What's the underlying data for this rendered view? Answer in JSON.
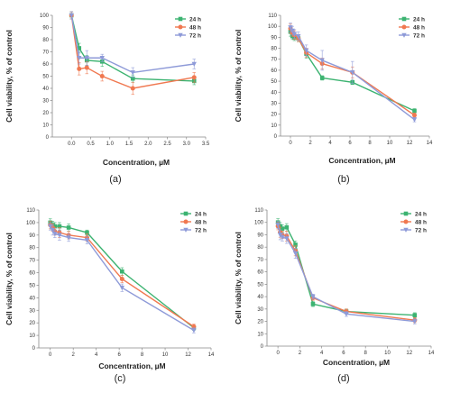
{
  "colors": {
    "24h": "#3cb371",
    "48h": "#f07850",
    "72h": "#8e9ad8"
  },
  "chart_data": [
    {
      "type": "line",
      "panel_label": "(a)",
      "xlabel": "Concentration, µM",
      "ylabel": "Cell viability, % of control",
      "xlim": [
        -0.5,
        3.5
      ],
      "ylim": [
        0,
        100
      ],
      "xticks": [
        "0.0",
        "0.5",
        "1.0",
        "1.5",
        "2.0",
        "2.5",
        "3.0",
        "3.5"
      ],
      "yticks": [
        "0",
        "10",
        "20",
        "30",
        "40",
        "50",
        "60",
        "70",
        "80",
        "90",
        "100"
      ],
      "legend_position": "top-right",
      "series": [
        {
          "name": "24 h",
          "x": [
            0,
            0.2,
            0.4,
            0.8,
            1.6,
            3.2
          ],
          "y": [
            100,
            73,
            63,
            62,
            48,
            46
          ],
          "err": [
            3,
            4,
            4,
            4,
            3,
            3
          ]
        },
        {
          "name": "48 h",
          "x": [
            0,
            0.2,
            0.4,
            0.8,
            1.6,
            3.2
          ],
          "y": [
            100,
            56,
            57,
            50,
            40,
            49
          ],
          "err": [
            3,
            5,
            5,
            4,
            5,
            4
          ]
        },
        {
          "name": "72 h",
          "x": [
            0,
            0.2,
            0.4,
            0.8,
            1.6,
            3.2
          ],
          "y": [
            100,
            65,
            65,
            65,
            53,
            60
          ],
          "err": [
            3,
            5,
            6,
            3,
            4,
            4
          ]
        }
      ]
    },
    {
      "type": "line",
      "panel_label": "(b)",
      "xlabel": "Concentration, µM",
      "ylabel": "Cell viability, % of control",
      "xlim": [
        -1,
        14
      ],
      "ylim": [
        0,
        110
      ],
      "xticks": [
        "0",
        "2",
        "4",
        "6",
        "8",
        "10",
        "12",
        "14"
      ],
      "yticks": [
        "0",
        "10",
        "20",
        "30",
        "40",
        "50",
        "60",
        "70",
        "80",
        "90",
        "100",
        "110"
      ],
      "legend_position": "top-right",
      "series": [
        {
          "name": "24 h",
          "x": [
            0,
            0.2,
            0.4,
            0.8,
            1.6,
            3.2,
            6.25,
            12.5
          ],
          "y": [
            95,
            91,
            90,
            89,
            75,
            53,
            49,
            23
          ],
          "err": [
            4,
            3,
            3,
            3,
            4,
            2,
            2,
            2
          ]
        },
        {
          "name": "48 h",
          "x": [
            0,
            0.2,
            0.4,
            0.8,
            1.6,
            3.2,
            6.25,
            12.5
          ],
          "y": [
            98,
            94,
            92,
            89,
            76,
            66,
            58,
            19
          ],
          "err": [
            4,
            3,
            4,
            3,
            4,
            5,
            5,
            2
          ]
        },
        {
          "name": "72 h",
          "x": [
            0,
            0.2,
            0.4,
            0.8,
            1.6,
            3.2,
            6.25,
            12.5
          ],
          "y": [
            99,
            96,
            93,
            91,
            78,
            69,
            58,
            15
          ],
          "err": [
            4,
            4,
            4,
            4,
            5,
            9,
            10,
            2
          ]
        }
      ]
    },
    {
      "type": "line",
      "panel_label": "(c)",
      "xlabel": "Concentration, µM",
      "ylabel": "Cell viability, % of control",
      "xlim": [
        -1,
        14
      ],
      "ylim": [
        0,
        110
      ],
      "xticks": [
        "0",
        "2",
        "4",
        "6",
        "8",
        "10",
        "12",
        "14"
      ],
      "yticks": [
        "0",
        "10",
        "20",
        "30",
        "40",
        "50",
        "60",
        "70",
        "80",
        "90",
        "100",
        "110"
      ],
      "legend_position": "top-right",
      "series": [
        {
          "name": "24 h",
          "x": [
            0,
            0.2,
            0.4,
            0.8,
            1.6,
            3.2,
            6.25,
            12.5
          ],
          "y": [
            100,
            98,
            97,
            97,
            96,
            92,
            61,
            16
          ],
          "err": [
            3,
            3,
            3,
            3,
            3,
            2,
            3,
            2
          ]
        },
        {
          "name": "48 h",
          "x": [
            0,
            0.2,
            0.4,
            0.8,
            1.6,
            3.2,
            6.25,
            12.5
          ],
          "y": [
            98,
            96,
            93,
            92,
            90,
            88,
            55,
            17
          ],
          "err": [
            3,
            3,
            3,
            4,
            3,
            3,
            3,
            2
          ]
        },
        {
          "name": "72 h",
          "x": [
            0,
            0.2,
            0.4,
            0.8,
            1.6,
            3.2,
            6.25,
            12.5
          ],
          "y": [
            97,
            94,
            91,
            90,
            88,
            86,
            48,
            14
          ],
          "err": [
            3,
            4,
            3,
            4,
            3,
            3,
            3,
            2
          ]
        }
      ]
    },
    {
      "type": "line",
      "panel_label": "(d)",
      "xlabel": "Concentration, µM",
      "ylabel": "Cell viability, % of control",
      "xlim": [
        -1,
        14
      ],
      "ylim": [
        0,
        110
      ],
      "xticks": [
        "0",
        "2",
        "4",
        "6",
        "8",
        "10",
        "12",
        "14"
      ],
      "yticks": [
        "0",
        "10",
        "20",
        "30",
        "40",
        "50",
        "60",
        "70",
        "80",
        "90",
        "100",
        "110"
      ],
      "legend_position": "top-right",
      "series": [
        {
          "name": "24 h",
          "x": [
            0,
            0.2,
            0.4,
            0.8,
            1.6,
            3.2,
            6.25,
            12.5
          ],
          "y": [
            100,
            97,
            95,
            96,
            82,
            34,
            28,
            25
          ],
          "err": [
            3,
            3,
            3,
            3,
            3,
            2,
            2,
            2
          ]
        },
        {
          "name": "48 h",
          "x": [
            0,
            0.2,
            0.4,
            0.8,
            1.6,
            3.2,
            6.25,
            12.5
          ],
          "y": [
            97,
            92,
            90,
            89,
            77,
            39,
            28,
            21
          ],
          "err": [
            3,
            4,
            3,
            4,
            4,
            2,
            2,
            2
          ]
        },
        {
          "name": "72 h",
          "x": [
            0,
            0.2,
            0.4,
            0.8,
            1.6,
            3.2,
            6.25,
            12.5
          ],
          "y": [
            98,
            90,
            88,
            87,
            75,
            40,
            26,
            20
          ],
          "err": [
            3,
            4,
            3,
            4,
            4,
            2,
            2,
            2
          ]
        }
      ]
    }
  ]
}
